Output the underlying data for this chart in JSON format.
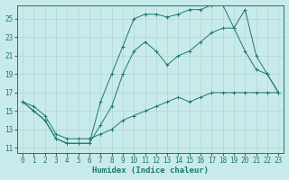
{
  "xlabel": "Humidex (Indice chaleur)",
  "bg_color": "#c9eaea",
  "grid_color": "#afd6d6",
  "line_color": "#1a7a6a",
  "xlim": [
    -0.5,
    23.5
  ],
  "ylim": [
    10.5,
    26.5
  ],
  "xticks": [
    0,
    1,
    2,
    3,
    4,
    5,
    6,
    7,
    8,
    9,
    10,
    11,
    12,
    13,
    14,
    15,
    16,
    17,
    18,
    19,
    20,
    21,
    22,
    23
  ],
  "yticks": [
    11,
    13,
    15,
    17,
    19,
    21,
    23,
    25
  ],
  "line1_x": [
    0,
    1,
    2,
    3,
    4,
    5,
    6,
    7,
    8,
    9,
    10,
    11,
    12,
    13,
    14,
    15,
    16,
    17,
    18,
    19,
    20,
    21,
    22,
    23
  ],
  "line1_y": [
    16,
    15,
    14,
    12,
    11.5,
    11.5,
    11.5,
    16,
    19,
    22,
    25,
    25.5,
    25.5,
    25.2,
    25.5,
    26,
    26,
    26.5,
    26.5,
    24,
    26,
    21,
    19,
    17
  ],
  "line2_x": [
    0,
    1,
    2,
    3,
    4,
    5,
    6,
    7,
    8,
    9,
    10,
    11,
    12,
    13,
    14,
    15,
    16,
    17,
    18,
    19,
    20,
    21,
    22,
    23
  ],
  "line2_y": [
    16,
    15,
    14,
    12,
    11.5,
    11.5,
    11.5,
    13.5,
    15.5,
    19,
    21.5,
    22.5,
    21.5,
    20,
    21,
    21.5,
    22.5,
    23.5,
    24,
    24,
    21.5,
    19.5,
    19,
    17
  ],
  "line3_x": [
    0,
    1,
    2,
    3,
    4,
    5,
    6,
    7,
    8,
    9,
    10,
    11,
    12,
    13,
    14,
    15,
    16,
    17,
    18,
    19,
    20,
    21,
    22,
    23
  ],
  "line3_y": [
    16,
    15.5,
    14.5,
    12.5,
    12,
    12,
    12,
    12.5,
    13,
    14,
    14.5,
    15,
    15.5,
    16,
    16.5,
    16,
    16.5,
    17,
    17,
    17,
    17,
    17,
    17,
    17
  ]
}
